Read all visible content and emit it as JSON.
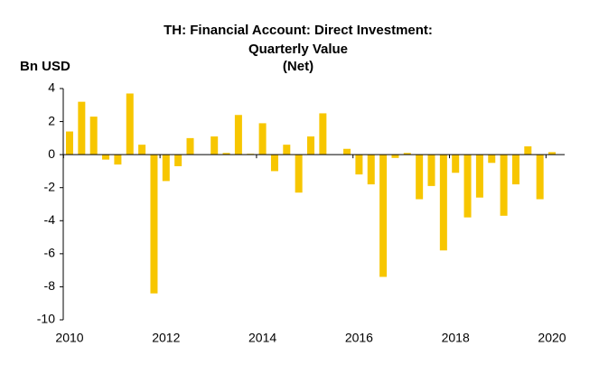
{
  "chart_data": {
    "type": "bar",
    "title": [
      "TH: Financial Account: Direct Investment:",
      "Quarterly Value",
      "(Net)"
    ],
    "y_label": "Bn USD",
    "categories": [
      "2010",
      null,
      null,
      null,
      null,
      null,
      null,
      null,
      "2012",
      null,
      null,
      null,
      null,
      null,
      null,
      null,
      "2014",
      null,
      null,
      null,
      null,
      null,
      null,
      null,
      "2016",
      null,
      null,
      null,
      null,
      null,
      null,
      null,
      "2018",
      null,
      null,
      null,
      null,
      null,
      null,
      null,
      "2020"
    ],
    "values": [
      1.4,
      3.2,
      2.3,
      -0.3,
      -0.6,
      3.7,
      0.6,
      -8.4,
      -1.6,
      -0.7,
      1.0,
      0.0,
      1.1,
      0.1,
      2.4,
      0.05,
      1.9,
      -1.0,
      0.6,
      -2.3,
      1.1,
      2.5,
      0.0,
      0.35,
      -1.2,
      -1.8,
      -7.4,
      -0.2,
      0.1,
      -2.7,
      -1.9,
      -5.8,
      -1.1,
      -3.8,
      -2.6,
      -0.5,
      -3.7,
      -1.8,
      0.5,
      -2.7,
      0.15
    ],
    "color": "#f7c600",
    "ylim": [
      -10,
      4
    ],
    "yticks": [
      -10,
      -8,
      -6,
      -4,
      -2,
      0,
      2,
      4
    ],
    "grid": false
  }
}
